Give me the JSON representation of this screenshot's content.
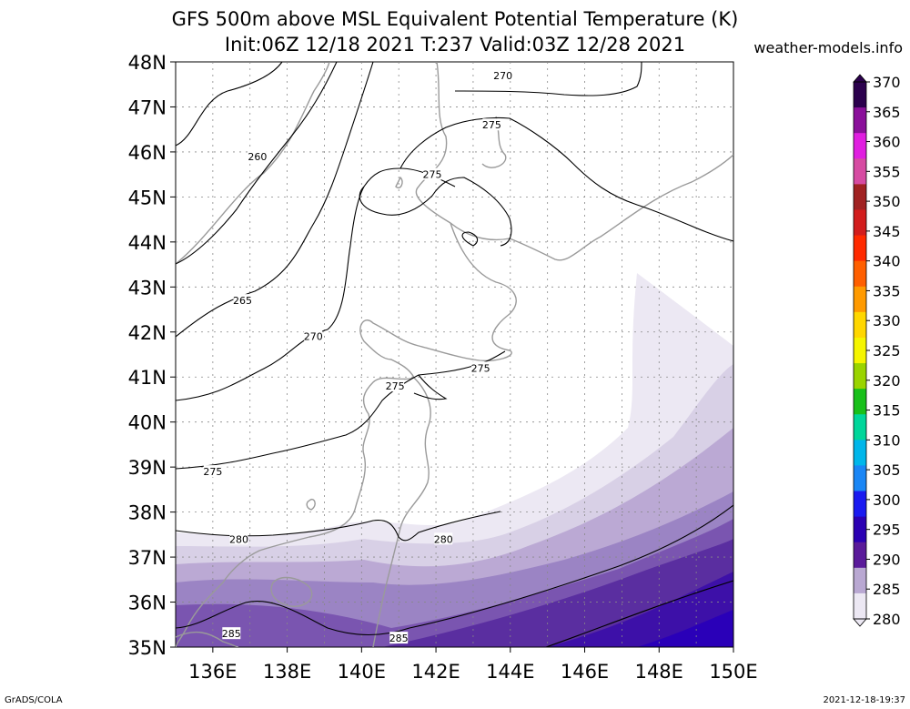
{
  "title": {
    "line1": "GFS 500m above MSL Equivalent Potential Temperature (K)",
    "line2": "Init:06Z 12/18 2021 T:237 Valid:03Z 12/28 2021"
  },
  "credit": "weather-models.info",
  "footer": {
    "left": "GrADS/COLA",
    "right": "2021-12-18-19:37"
  },
  "map": {
    "lat_range": [
      35,
      48
    ],
    "lon_range": [
      135,
      150
    ],
    "lat_labels": [
      "48N",
      "47N",
      "46N",
      "45N",
      "44N",
      "43N",
      "42N",
      "41N",
      "40N",
      "39N",
      "38N",
      "37N",
      "36N",
      "35N"
    ],
    "lon_labels": [
      "136E",
      "138E",
      "140E",
      "142E",
      "144E",
      "146E",
      "148E",
      "150E"
    ],
    "contour_labels": [
      {
        "text": "270",
        "lon": 143.8,
        "lat": 47.7
      },
      {
        "text": "275",
        "lon": 143.5,
        "lat": 46.6
      },
      {
        "text": "260",
        "lon": 137.2,
        "lat": 45.9
      },
      {
        "text": "275",
        "lon": 141.9,
        "lat": 45.5
      },
      {
        "text": "265",
        "lon": 136.8,
        "lat": 42.7
      },
      {
        "text": "270",
        "lon": 138.7,
        "lat": 41.9
      },
      {
        "text": "275",
        "lon": 143.2,
        "lat": 41.2
      },
      {
        "text": "275",
        "lon": 140.9,
        "lat": 40.8
      },
      {
        "text": "275",
        "lon": 136.0,
        "lat": 38.9
      },
      {
        "text": "280",
        "lon": 136.7,
        "lat": 37.4
      },
      {
        "text": "280",
        "lon": 142.2,
        "lat": 37.4
      },
      {
        "text": "285",
        "lon": 136.5,
        "lat": 35.3
      },
      {
        "text": "285",
        "lon": 141.0,
        "lat": 35.2
      }
    ]
  },
  "colorbar": {
    "levels": [
      "370",
      "365",
      "360",
      "355",
      "350",
      "345",
      "340",
      "335",
      "330",
      "325",
      "320",
      "315",
      "310",
      "305",
      "300",
      "295",
      "290",
      "285",
      "280"
    ],
    "colors": [
      "#2b004d",
      "#8a0f9a",
      "#e01ee0",
      "#d64ba2",
      "#a02222",
      "#d21d1d",
      "#ff2a00",
      "#ff5f00",
      "#ff9a00",
      "#ffd700",
      "#f5f500",
      "#9ad400",
      "#18c01a",
      "#00d69a",
      "#00b6ea",
      "#1a86f5",
      "#1a1af0",
      "#2b00b3",
      "#5a1a9a",
      "#b9a8d2",
      "#ece8f3"
    ]
  }
}
